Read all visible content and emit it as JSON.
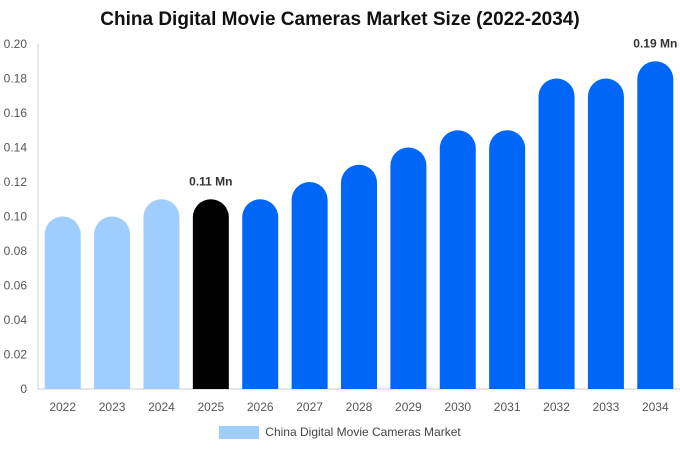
{
  "chart_data": {
    "type": "bar",
    "title": "China Digital Movie Cameras Market Size (2022-2034)",
    "categories": [
      "2022",
      "2023",
      "2024",
      "2025",
      "2026",
      "2027",
      "2028",
      "2029",
      "2030",
      "2031",
      "2032",
      "2033",
      "2034"
    ],
    "series": [
      {
        "name": "China Digital Movie Cameras Market",
        "values": [
          0.1,
          0.1,
          0.11,
          0.11,
          0.11,
          0.12,
          0.13,
          0.14,
          0.15,
          0.15,
          0.18,
          0.18,
          0.19
        ]
      }
    ],
    "bar_colors": [
      "#9fcdfd",
      "#9fcdfd",
      "#9fcdfd",
      "#000000",
      "#0066f8",
      "#0066f8",
      "#0066f8",
      "#0066f8",
      "#0066f8",
      "#0066f8",
      "#0066f8",
      "#0066f8",
      "#0066f8"
    ],
    "ylim": [
      0,
      0.2
    ],
    "yticks": [
      "0",
      "0.02",
      "0.04",
      "0.06",
      "0.08",
      "0.10",
      "0.12",
      "0.14",
      "0.16",
      "0.18",
      "0.20"
    ],
    "data_labels": [
      {
        "category": "2025",
        "text": "0.11 Mn"
      },
      {
        "category": "2034",
        "text": "0.19 Mn"
      }
    ],
    "legend": {
      "label": "China Digital Movie Cameras Market",
      "color": "#9fcdfd",
      "position": "bottom"
    },
    "grid": false
  }
}
